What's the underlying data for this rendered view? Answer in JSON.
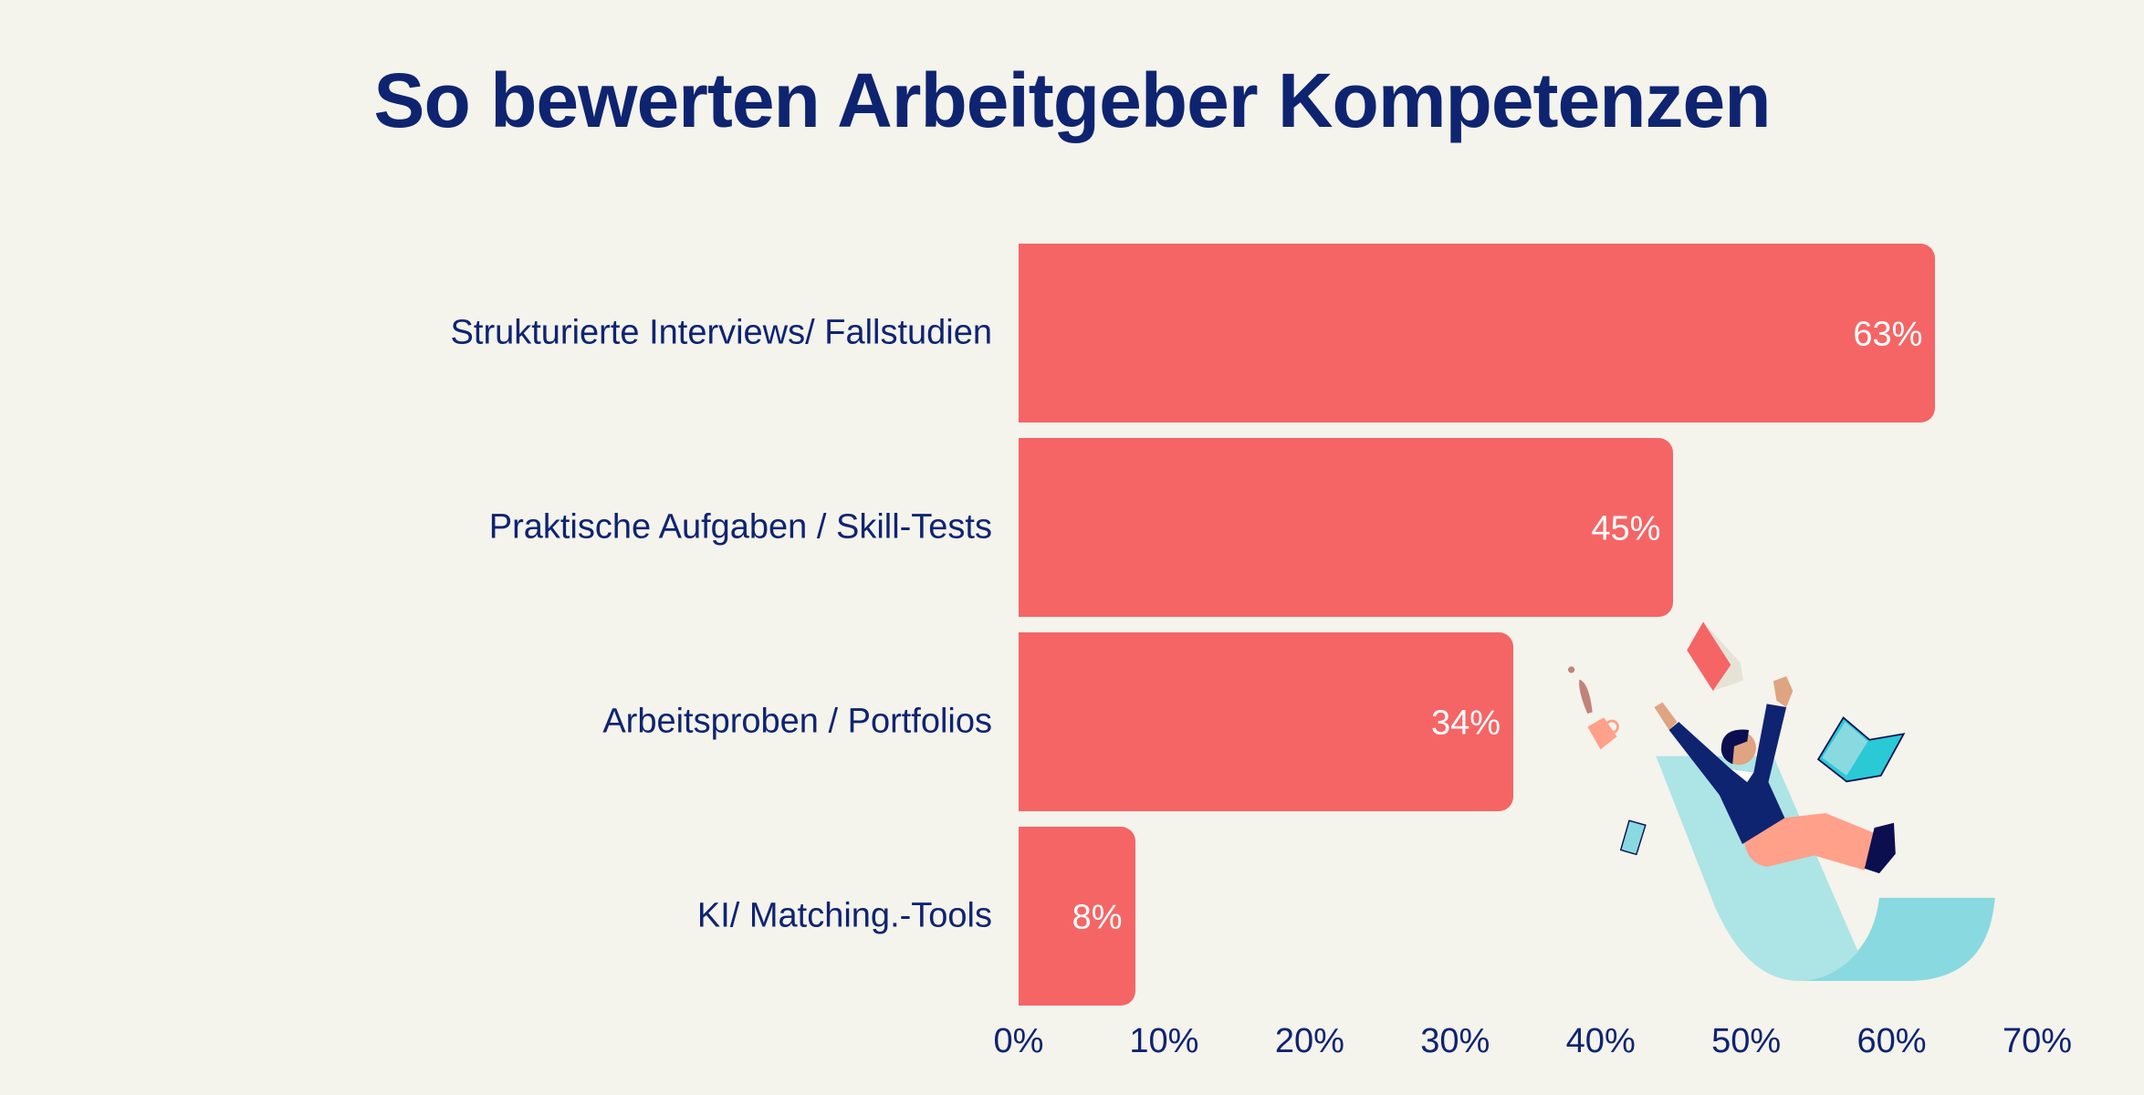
{
  "title": "So bewerten Arbeitgeber Kompetenzen",
  "colors": {
    "background": "#f4f3ec",
    "bar": "#f56565",
    "text": "#0f2470"
  },
  "chart_data": {
    "type": "bar",
    "orientation": "horizontal",
    "title": "So bewerten Arbeitgeber Kompetenzen",
    "categories": [
      "Strukturierte Interviews/ Fallstudien",
      "Praktische Aufgaben / Skill-Tests",
      "Arbeitsproben / Portfolios",
      "KI/ Matching.-Tools"
    ],
    "values": [
      63,
      45,
      34,
      8
    ],
    "value_labels": [
      "63%",
      "45%",
      "34%",
      "8%"
    ],
    "xlim": [
      0,
      70
    ],
    "xticks": [
      "0%",
      "10%",
      "20%",
      "30%",
      "40%",
      "50%",
      "60%",
      "70%"
    ],
    "grid": false,
    "xlabel": "",
    "ylabel": ""
  }
}
